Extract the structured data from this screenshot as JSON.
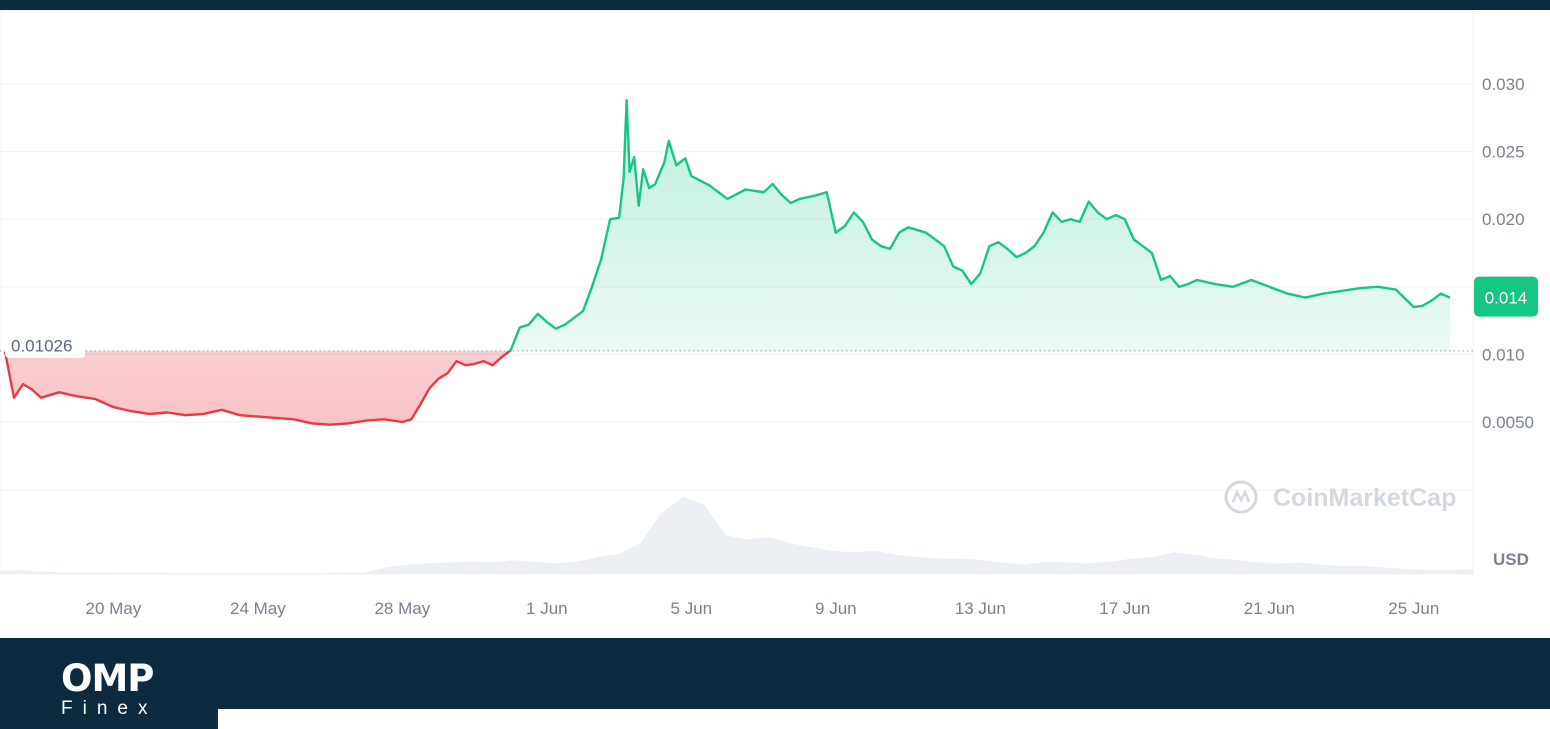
{
  "chart_data": {
    "type": "area",
    "series": [
      {
        "values": [
          [
            "2024-05-17",
            0.0102
          ],
          [
            "2024-05-17T06",
            0.0068
          ],
          [
            "2024-05-17T12",
            0.0078
          ],
          [
            "2024-05-17T18",
            0.0074
          ],
          [
            "2024-05-18",
            0.0068
          ],
          [
            "2024-05-18T12",
            0.0072
          ],
          [
            "2024-05-19",
            0.0069
          ],
          [
            "2024-05-19T12",
            0.0067
          ],
          [
            "2024-05-20",
            0.0061
          ],
          [
            "2024-05-20T12",
            0.0058
          ],
          [
            "2024-05-21",
            0.0056
          ],
          [
            "2024-05-21T12",
            0.0057
          ],
          [
            "2024-05-22",
            0.0055
          ],
          [
            "2024-05-22T12",
            0.0056
          ],
          [
            "2024-05-23",
            0.0059
          ],
          [
            "2024-05-23T12",
            0.0055
          ],
          [
            "2024-05-24",
            0.0054
          ],
          [
            "2024-05-24T12",
            0.0053
          ],
          [
            "2024-05-25",
            0.0052
          ],
          [
            "2024-05-25T12",
            0.0049
          ],
          [
            "2024-05-26",
            0.0048
          ],
          [
            "2024-05-26T12",
            0.0049
          ],
          [
            "2024-05-27",
            0.0051
          ],
          [
            "2024-05-27T12",
            0.0052
          ],
          [
            "2024-05-28",
            0.005
          ],
          [
            "2024-05-28T06",
            0.0052
          ],
          [
            "2024-05-28T12",
            0.0063
          ],
          [
            "2024-05-28T18",
            0.0075
          ],
          [
            "2024-05-29",
            0.0082
          ],
          [
            "2024-05-29T06",
            0.0086
          ],
          [
            "2024-05-29T12",
            0.0095
          ],
          [
            "2024-05-29T18",
            0.0092
          ],
          [
            "2024-05-30",
            0.0093
          ],
          [
            "2024-05-30T06",
            0.0095
          ],
          [
            "2024-05-30T12",
            0.0092
          ],
          [
            "2024-05-30T18",
            0.0098
          ],
          [
            "2024-05-31",
            0.0103
          ],
          [
            "2024-05-31T06",
            0.012
          ],
          [
            "2024-05-31T12",
            0.0122
          ],
          [
            "2024-05-31T18",
            0.013
          ],
          [
            "2024-06-01",
            0.0124
          ],
          [
            "2024-06-01T06",
            0.0119
          ],
          [
            "2024-06-01T12",
            0.0122
          ],
          [
            "2024-06-01T18",
            0.0127
          ],
          [
            "2024-06-02",
            0.0132
          ],
          [
            "2024-06-02T06",
            0.015
          ],
          [
            "2024-06-02T12",
            0.017
          ],
          [
            "2024-06-02T18",
            0.02
          ],
          [
            "2024-06-03",
            0.0201
          ],
          [
            "2024-06-03T03",
            0.023
          ],
          [
            "2024-06-03T05",
            0.0288
          ],
          [
            "2024-06-03T07",
            0.0235
          ],
          [
            "2024-06-03T10",
            0.0246
          ],
          [
            "2024-06-03T13",
            0.021
          ],
          [
            "2024-06-03T16",
            0.0237
          ],
          [
            "2024-06-03T20",
            0.0223
          ],
          [
            "2024-06-04",
            0.0226
          ],
          [
            "2024-06-04T06",
            0.0242
          ],
          [
            "2024-06-04T09",
            0.0258
          ],
          [
            "2024-06-04T14",
            0.024
          ],
          [
            "2024-06-04T20",
            0.0245
          ],
          [
            "2024-06-05",
            0.0232
          ],
          [
            "2024-06-05T12",
            0.0225
          ],
          [
            "2024-06-06",
            0.0215
          ],
          [
            "2024-06-06T12",
            0.0222
          ],
          [
            "2024-06-07",
            0.022
          ],
          [
            "2024-06-07T06",
            0.0226
          ],
          [
            "2024-06-07T12",
            0.0218
          ],
          [
            "2024-06-07T18",
            0.0212
          ],
          [
            "2024-06-08",
            0.0215
          ],
          [
            "2024-06-08T12",
            0.0218
          ],
          [
            "2024-06-08T18",
            0.022
          ],
          [
            "2024-06-09",
            0.019
          ],
          [
            "2024-06-09T06",
            0.0195
          ],
          [
            "2024-06-09T12",
            0.0205
          ],
          [
            "2024-06-09T18",
            0.0198
          ],
          [
            "2024-06-10",
            0.0185
          ],
          [
            "2024-06-10T06",
            0.018
          ],
          [
            "2024-06-10T12",
            0.0178
          ],
          [
            "2024-06-10T18",
            0.019
          ],
          [
            "2024-06-11",
            0.0194
          ],
          [
            "2024-06-11T12",
            0.019
          ],
          [
            "2024-06-12",
            0.018
          ],
          [
            "2024-06-12T06",
            0.0165
          ],
          [
            "2024-06-12T12",
            0.0162
          ],
          [
            "2024-06-12T18",
            0.0152
          ],
          [
            "2024-06-13",
            0.016
          ],
          [
            "2024-06-13T06",
            0.018
          ],
          [
            "2024-06-13T12",
            0.0183
          ],
          [
            "2024-06-13T18",
            0.0178
          ],
          [
            "2024-06-14",
            0.0172
          ],
          [
            "2024-06-14T06",
            0.0175
          ],
          [
            "2024-06-14T12",
            0.018
          ],
          [
            "2024-06-14T18",
            0.019
          ],
          [
            "2024-06-15",
            0.0205
          ],
          [
            "2024-06-15T06",
            0.0198
          ],
          [
            "2024-06-15T12",
            0.02
          ],
          [
            "2024-06-15T18",
            0.0198
          ],
          [
            "2024-06-16",
            0.0213
          ],
          [
            "2024-06-16T06",
            0.0205
          ],
          [
            "2024-06-16T12",
            0.02
          ],
          [
            "2024-06-16T18",
            0.0203
          ],
          [
            "2024-06-17",
            0.02
          ],
          [
            "2024-06-17T06",
            0.0185
          ],
          [
            "2024-06-17T12",
            0.018
          ],
          [
            "2024-06-17T18",
            0.0175
          ],
          [
            "2024-06-18",
            0.0155
          ],
          [
            "2024-06-18T06",
            0.0158
          ],
          [
            "2024-06-18T12",
            0.015
          ],
          [
            "2024-06-18T18",
            0.0152
          ],
          [
            "2024-06-19",
            0.0155
          ],
          [
            "2024-06-19T12",
            0.0152
          ],
          [
            "2024-06-20",
            0.015
          ],
          [
            "2024-06-20T12",
            0.0155
          ],
          [
            "2024-06-21",
            0.015
          ],
          [
            "2024-06-21T12",
            0.0145
          ],
          [
            "2024-06-22",
            0.0142
          ],
          [
            "2024-06-22T12",
            0.0145
          ],
          [
            "2024-06-23",
            0.0147
          ],
          [
            "2024-06-23T12",
            0.0149
          ],
          [
            "2024-06-24",
            0.015
          ],
          [
            "2024-06-24T12",
            0.0148
          ],
          [
            "2024-06-25",
            0.0135
          ],
          [
            "2024-06-25T06",
            0.0136
          ],
          [
            "2024-06-25T12",
            0.014
          ],
          [
            "2024-06-25T18",
            0.0145
          ],
          [
            "2024-06-26",
            0.0142
          ]
        ]
      }
    ],
    "volume": [
      0.04,
      0.05,
      0.03,
      0.02,
      0.02,
      0.015,
      0.015,
      0.015,
      0.01,
      0.01,
      0.01,
      0.01,
      0.01,
      0.01,
      0.01,
      0.01,
      0.015,
      0.02,
      0.08,
      0.12,
      0.14,
      0.15,
      0.16,
      0.15,
      0.18,
      0.16,
      0.14,
      0.16,
      0.22,
      0.26,
      0.4,
      0.8,
      1.0,
      0.9,
      0.5,
      0.45,
      0.48,
      0.4,
      0.35,
      0.3,
      0.28,
      0.3,
      0.25,
      0.22,
      0.2,
      0.2,
      0.18,
      0.15,
      0.12,
      0.16,
      0.15,
      0.14,
      0.16,
      0.2,
      0.22,
      0.28,
      0.25,
      0.2,
      0.18,
      0.15,
      0.14,
      0.15,
      0.12,
      0.1,
      0.1,
      0.08,
      0.06,
      0.05,
      0.05,
      0.06
    ],
    "baseline": 0.01026,
    "baseline_label": "0.01026",
    "current_label": "0.014",
    "yticks": [
      "0.0050",
      "0.010",
      "0.020",
      "0.025",
      "0.030"
    ],
    "ytick_values": [
      0.005,
      0.01,
      0.02,
      0.025,
      0.03
    ],
    "xticks": [
      "20 May",
      "24 May",
      "28 May",
      "1 Jun",
      "5 Jun",
      "9 Jun",
      "13 Jun",
      "17 Jun",
      "21 Jun",
      "25 Jun"
    ],
    "xtick_dates": [
      "2024-05-20",
      "2024-05-24",
      "2024-05-28",
      "2024-06-01",
      "2024-06-05",
      "2024-06-09",
      "2024-06-13",
      "2024-06-17",
      "2024-06-21",
      "2024-06-25"
    ],
    "currency_label": "USD",
    "watermark": "CoinMarketCap",
    "colors": {
      "up": "#16c784",
      "down": "#ea3943",
      "grid": "#eff2f5",
      "axis_text": "#7a8290"
    },
    "grid": true
  },
  "footer": {
    "logo_main": "OMP",
    "logo_sub": "Finex"
  }
}
